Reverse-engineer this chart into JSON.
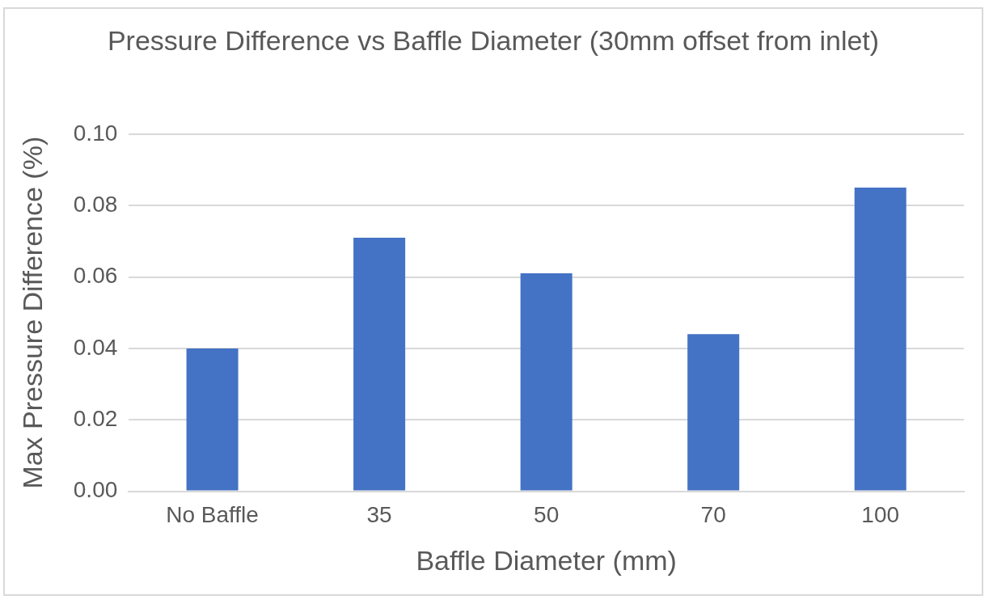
{
  "chart_data": {
    "type": "bar",
    "title": "Pressure Difference vs Baffle Diameter (30mm offset from inlet)",
    "xlabel": "Baffle Diameter (mm)",
    "ylabel": "Max Pressure Difference (%)",
    "categories": [
      "No Baffle",
      "35",
      "50",
      "70",
      "100"
    ],
    "values": [
      0.04,
      0.071,
      0.061,
      0.044,
      0.085
    ],
    "color": "#4472c4",
    "ylim": [
      0,
      0.1
    ],
    "yticks": [
      {
        "value": 0,
        "label": "0.00"
      },
      {
        "value": 0.02,
        "label": "0.02"
      },
      {
        "value": 0.04,
        "label": "0.04"
      },
      {
        "value": 0.06,
        "label": "0.06"
      },
      {
        "value": 0.08,
        "label": "0.08"
      },
      {
        "value": 0.1,
        "label": "0.10"
      }
    ],
    "grid": "y",
    "legend": false
  }
}
